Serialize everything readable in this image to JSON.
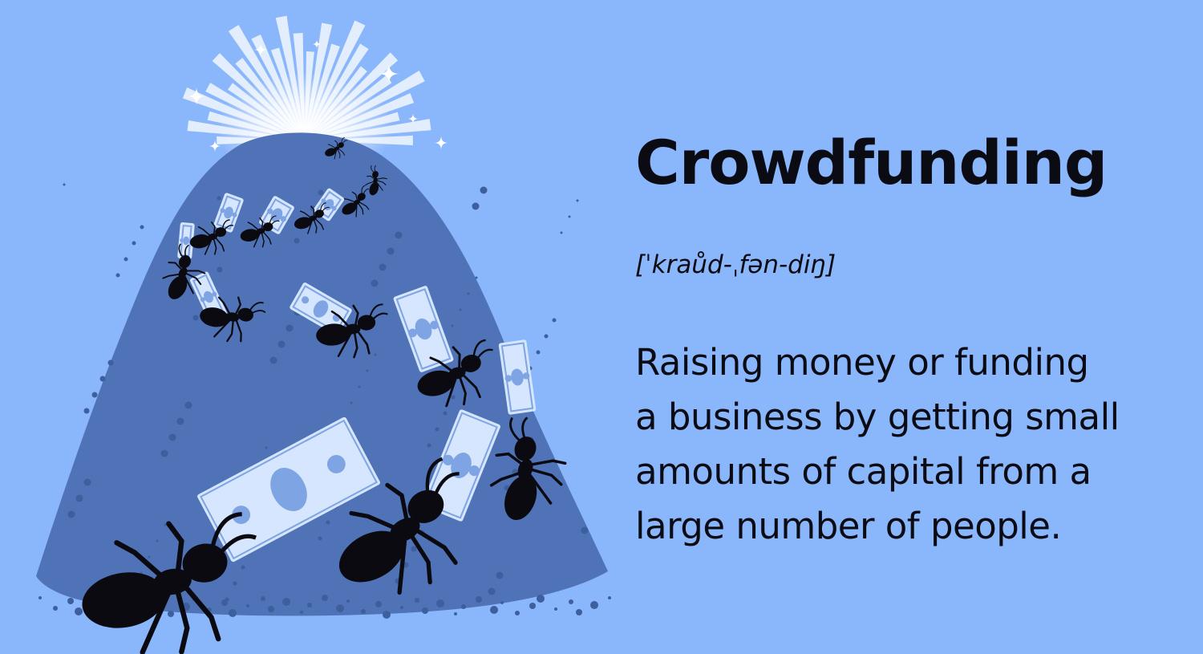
{
  "colors": {
    "background": "#8ab6fb",
    "text": "#0b0b14",
    "mound": "#4f73b6",
    "mound_dark": "#3e5f9e",
    "ant": "#0a0a10",
    "bill": "#d6e6ff",
    "bill_accent": "#7ea4e4",
    "glow": "#ffffff"
  },
  "heading": {
    "term": "Crowdfunding",
    "pronunciation": "[ˈkraůd-ˌfən-diŋ]"
  },
  "definition": {
    "lines": [
      "Raising money or funding",
      "a business by getting small",
      "amounts of capital from a",
      "large number of people."
    ]
  },
  "illustration": {
    "scene": "ant-hill-with-money",
    "icons": [
      "ant-icon",
      "dollar-bill-icon",
      "sparkle-icon"
    ]
  }
}
